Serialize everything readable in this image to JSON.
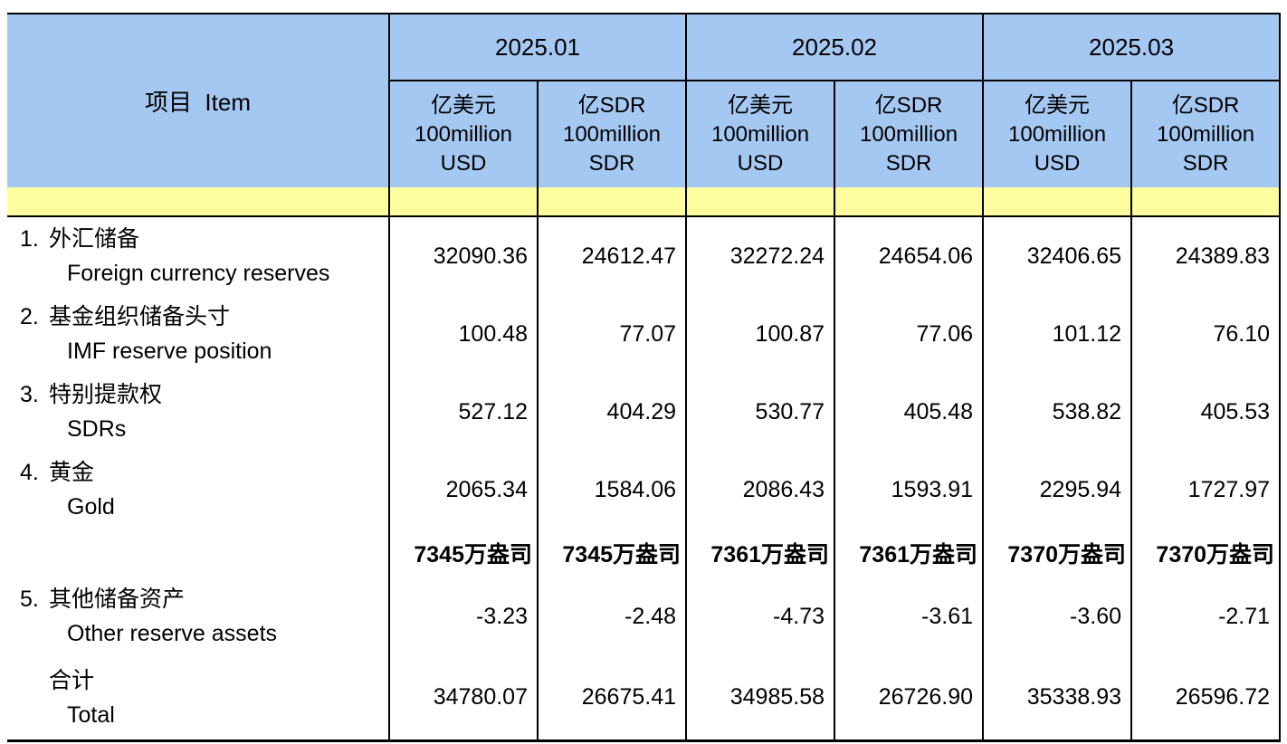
{
  "colors": {
    "header_blue": "#A5C8F2",
    "band_yellow": "#FDFC9F",
    "border": "#000000",
    "text": "#000000"
  },
  "table": {
    "item_header": "项目  Item",
    "months": [
      "2025.01",
      "2025.02",
      "2025.03"
    ],
    "units": {
      "usd": {
        "l1": "亿美元",
        "l2": "100million",
        "l3": "USD"
      },
      "sdr": {
        "l1": "亿SDR",
        "l2": "100million",
        "l3": "SDR"
      }
    },
    "rows": [
      {
        "num": "1.",
        "zh": "外汇储备",
        "en": "Foreign currency reserves",
        "values": [
          "32090.36",
          "24612.47",
          "32272.24",
          "24654.06",
          "32406.65",
          "24389.83"
        ]
      },
      {
        "num": "2.",
        "zh": "基金组织储备头寸",
        "en": "IMF reserve position",
        "values": [
          "100.48",
          "77.07",
          "100.87",
          "77.06",
          "101.12",
          "76.10"
        ]
      },
      {
        "num": "3.",
        "zh": "特别提款权",
        "en": "SDRs",
        "values": [
          "527.12",
          "404.29",
          "530.77",
          "405.48",
          "538.82",
          "405.53"
        ]
      },
      {
        "num": "4.",
        "zh": "黄金",
        "en": "Gold",
        "values": [
          "2065.34",
          "1584.06",
          "2086.43",
          "1593.91",
          "2295.94",
          "1727.97"
        ]
      },
      {
        "num": "",
        "zh": "",
        "en": "",
        "values": [
          "7345万盎司",
          "7345万盎司",
          "7361万盎司",
          "7361万盎司",
          "7370万盎司",
          "7370万盎司"
        ]
      },
      {
        "num": "5.",
        "zh": "其他储备资产",
        "en": "Other reserve assets",
        "values": [
          "-3.23",
          "-2.48",
          "-4.73",
          "-3.61",
          "-3.60",
          "-2.71"
        ]
      },
      {
        "num": "",
        "zh": "合计",
        "en": "Total",
        "values": [
          "34780.07",
          "26675.41",
          "34985.58",
          "26726.90",
          "35338.93",
          "26596.72"
        ]
      }
    ]
  },
  "chart_data": {
    "type": "table",
    "columns": [
      "项目 Item",
      "2025.01 亿美元 100million USD",
      "2025.01 亿SDR 100million SDR",
      "2025.02 亿美元 100million USD",
      "2025.02 亿SDR 100million SDR",
      "2025.03 亿美元 100million USD",
      "2025.03 亿SDR 100million SDR"
    ],
    "rows": [
      [
        "1. 外汇储备 Foreign currency reserves",
        32090.36,
        24612.47,
        32272.24,
        24654.06,
        32406.65,
        24389.83
      ],
      [
        "2. 基金组织储备头寸 IMF reserve position",
        100.48,
        77.07,
        100.87,
        77.06,
        101.12,
        76.1
      ],
      [
        "3. 特别提款权 SDRs",
        527.12,
        404.29,
        530.77,
        405.48,
        538.82,
        405.53
      ],
      [
        "4. 黄金 Gold",
        2065.34,
        1584.06,
        2086.43,
        1593.91,
        2295.94,
        1727.97
      ],
      [
        "",
        "7345万盎司",
        "7345万盎司",
        "7361万盎司",
        "7361万盎司",
        "7370万盎司",
        "7370万盎司"
      ],
      [
        "5. 其他储备资产 Other reserve assets",
        -3.23,
        -2.48,
        -4.73,
        -3.61,
        -3.6,
        -2.71
      ],
      [
        "合计 Total",
        34780.07,
        26675.41,
        34985.58,
        26726.9,
        35338.93,
        26596.72
      ]
    ]
  }
}
